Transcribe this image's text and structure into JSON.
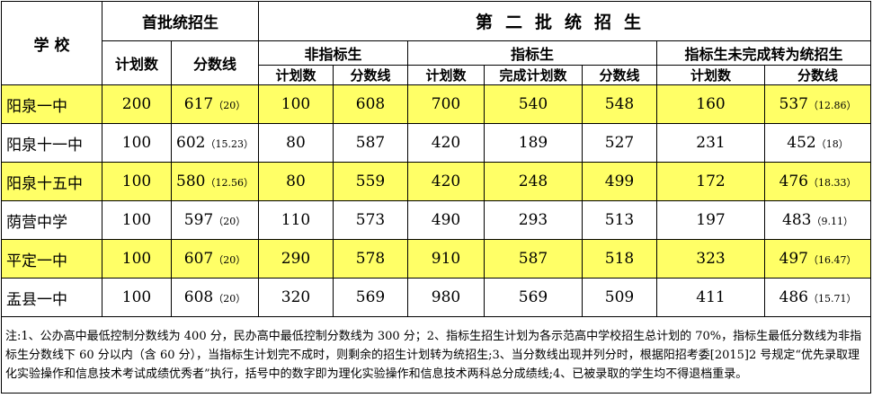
{
  "header": {
    "school": "学 校",
    "first_batch": "首批统招生",
    "second_batch": "第二批统招生",
    "non_quota": "非指标生",
    "quota": "指标生",
    "quota_converted": "指标生未完成转为统招生",
    "plan": "计划数",
    "score": "分数线",
    "completed_plan": "完成计划数"
  },
  "highlight_color": "#ffff66",
  "rows": [
    {
      "school": "阳泉一中",
      "fp": "200",
      "fs": "617",
      "fsx": "（20）",
      "np": "100",
      "ns": "608",
      "qp": "700",
      "qc": "540",
      "qs": "548",
      "cp": "160",
      "cs": "537",
      "csx": "（12.86）"
    },
    {
      "school": "阳泉十一中",
      "fp": "100",
      "fs": "602",
      "fsx": "（15.23）",
      "np": "80",
      "ns": "587",
      "qp": "420",
      "qc": "189",
      "qs": "527",
      "cp": "231",
      "cs": "452",
      "csx": "（18）"
    },
    {
      "school": "阳泉十五中",
      "fp": "100",
      "fs": "580",
      "fsx": "（12.56）",
      "np": "80",
      "ns": "559",
      "qp": "420",
      "qc": "248",
      "qs": "499",
      "cp": "172",
      "cs": "476",
      "csx": "（18.33）"
    },
    {
      "school": "荫营中学",
      "fp": "100",
      "fs": "597",
      "fsx": "（20）",
      "np": "110",
      "ns": "573",
      "qp": "490",
      "qc": "293",
      "qs": "513",
      "cp": "197",
      "cs": "483",
      "csx": "（9.11）"
    },
    {
      "school": "平定一中",
      "fp": "100",
      "fs": "607",
      "fsx": "（20）",
      "np": "290",
      "ns": "578",
      "qp": "910",
      "qc": "587",
      "qs": "518",
      "cp": "323",
      "cs": "497",
      "csx": "（16.47）"
    },
    {
      "school": "盂县一中",
      "fp": "100",
      "fs": "608",
      "fsx": "（20）",
      "np": "320",
      "ns": "569",
      "qp": "980",
      "qc": "569",
      "qs": "509",
      "cp": "411",
      "cs": "486",
      "csx": "（15.71）"
    }
  ],
  "note": "注:1、公办高中最低控制分数线为 400 分，民办高中最低控制分数线为 300 分；2、指标生招生计划为各示范高中学校招生总计划的 70%，指标生最低分数线为非指标生分数线下 60 分以内（含 60 分），当指标生计划完不成时，则剩余的招生计划转为统招生;3、当分数线出现并列分时，根据阳招考委[2015]2 号规定“优先录取理化实验操作和信息技术考试成绩优秀者”执行，括号中的数字即为理化实验操作和信息技术两科总分成绩线;4、已被录取的学生均不得退档重录。"
}
